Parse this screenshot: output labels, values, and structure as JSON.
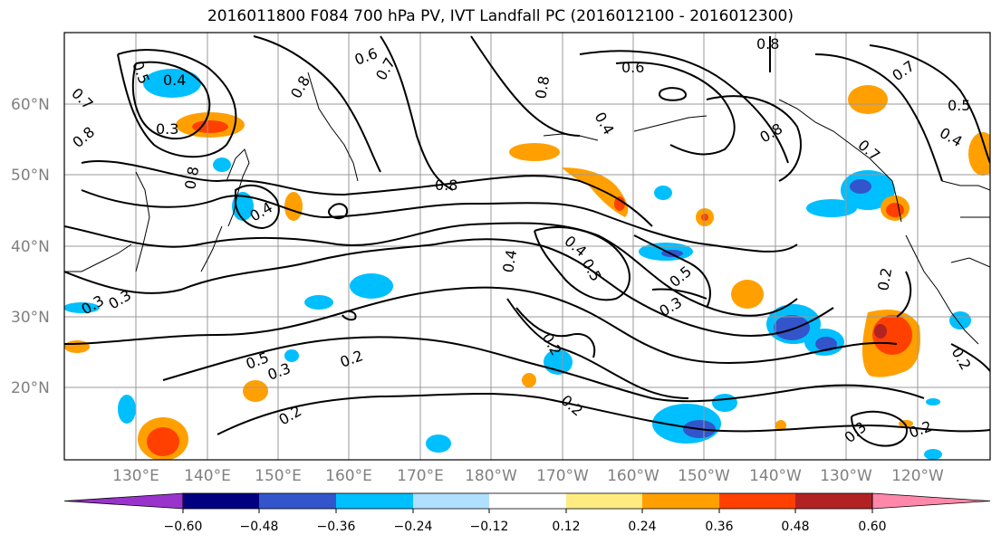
{
  "title": "2016011800 F084 700 hPa PV, IVT Landfall PC (2016012100 - 2016012300)",
  "lat_labels": [
    "60°N",
    "50°N",
    "40°N",
    "30°N",
    "20°N"
  ],
  "lon_labels": [
    "130°E",
    "140°E",
    "150°E",
    "160°E",
    "170°E",
    "180°W",
    "170°W",
    "160°W",
    "150°W",
    "140°W",
    "130°W",
    "120°W"
  ],
  "colorbar": {
    "colors": [
      "#9933cc",
      "#000080",
      "#3355cc",
      "#00bfff",
      "#b0e0ff",
      "#ffffff",
      "#ffec80",
      "#ffa000",
      "#ff4000",
      "#b22222",
      "#ff88aa"
    ],
    "tick_labels": [
      "−0.60",
      "−0.48",
      "−0.36",
      "−0.24",
      "−0.12",
      "0.12",
      "0.24",
      "0.36",
      "0.48",
      "0.60"
    ]
  },
  "contour_labels": [
    "0.4",
    "0.3",
    "0.5",
    "0.7",
    "0.8",
    "0.6",
    "0.7",
    "0.8",
    "0.8",
    "0.6",
    "0.4",
    "0.8",
    "0.8",
    "0.7",
    "0.5",
    "0.4",
    "0.7",
    "0.8",
    "0.8",
    "0.4",
    "0.4",
    "0.5",
    "0.4",
    "0.5",
    "0.3",
    "0.2",
    "0.5",
    "0.3",
    "0.2",
    "0.2",
    "0.2",
    "0.2",
    "0.3",
    "0.2",
    "0.3",
    "0.3",
    "0.2"
  ]
}
